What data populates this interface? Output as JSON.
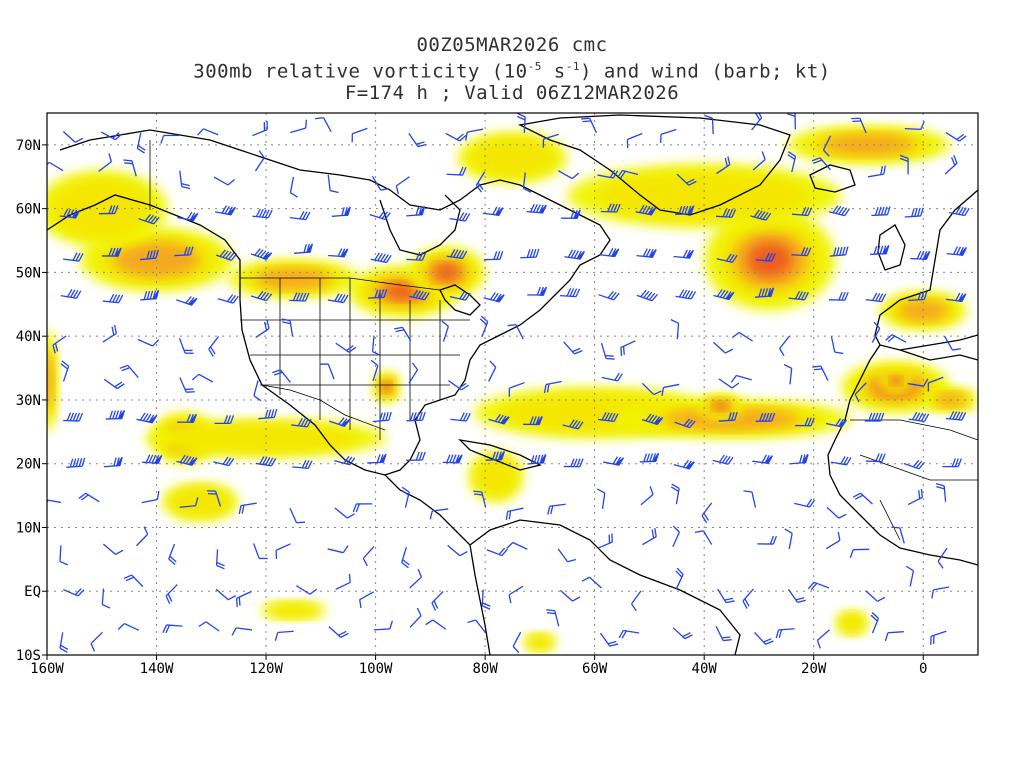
{
  "title": {
    "line1": "00Z05MAR2026 cmc",
    "line2_a": "300mb relative vorticity (10",
    "line2_sup1": "-5",
    "line2_b": " s",
    "line2_sup2": "-1",
    "line2_c": ") and wind (barb; kt)",
    "line3": "F=174 h ; Valid 06Z12MAR2026"
  },
  "map": {
    "lon_range": [
      -160,
      10
    ],
    "lat_range": [
      -10,
      75
    ],
    "lon_ticks": [
      {
        "value": -160,
        "label": "160W"
      },
      {
        "value": -140,
        "label": "140W"
      },
      {
        "value": -120,
        "label": "120W"
      },
      {
        "value": -100,
        "label": "100W"
      },
      {
        "value": -80,
        "label": "80W"
      },
      {
        "value": -60,
        "label": "60W"
      },
      {
        "value": -40,
        "label": "40W"
      },
      {
        "value": -20,
        "label": "20W"
      },
      {
        "value": 0,
        "label": "0"
      }
    ],
    "lat_ticks": [
      {
        "value": 70,
        "label": "70N"
      },
      {
        "value": 60,
        "label": "60N"
      },
      {
        "value": 50,
        "label": "50N"
      },
      {
        "value": 40,
        "label": "40N"
      },
      {
        "value": 30,
        "label": "30N"
      },
      {
        "value": 20,
        "label": "20N"
      },
      {
        "value": 10,
        "label": "10N"
      },
      {
        "value": 0,
        "label": "EQ"
      },
      {
        "value": -10,
        "label": "10S"
      }
    ],
    "grid": true,
    "colors": {
      "shade_light": "#f0f500",
      "shade_yellow": "#f5e600",
      "shade_orange": "#f5a623",
      "shade_deep": "#ee5a1e",
      "shade_red": "#e6194b",
      "barb": "#2244ee",
      "coast": "#000000",
      "grid": "#888888"
    },
    "vorticity_features": [
      {
        "lon": -140,
        "lat": 52,
        "rx": 14,
        "ry": 5,
        "level": 2
      },
      {
        "lon": -150,
        "lat": 60,
        "rx": 12,
        "ry": 6,
        "level": 1
      },
      {
        "lon": -115,
        "lat": 49,
        "rx": 12,
        "ry": 3,
        "level": 2
      },
      {
        "lon": -95,
        "lat": 47,
        "rx": 10,
        "ry": 4,
        "level": 3
      },
      {
        "lon": -87,
        "lat": 50,
        "rx": 7,
        "ry": 4,
        "level": 3
      },
      {
        "lon": -98,
        "lat": 32,
        "rx": 2.5,
        "ry": 2.5,
        "level": 4
      },
      {
        "lon": -135,
        "lat": 24,
        "rx": 6,
        "ry": 4,
        "level": 3
      },
      {
        "lon": -132,
        "lat": 14,
        "rx": 7,
        "ry": 3,
        "level": 1
      },
      {
        "lon": -120,
        "lat": 24,
        "rx": 22,
        "ry": 3,
        "level": 1
      },
      {
        "lon": -60,
        "lat": 28,
        "rx": 22,
        "ry": 4,
        "level": 1
      },
      {
        "lon": -35,
        "lat": 27,
        "rx": 22,
        "ry": 3,
        "level": 2
      },
      {
        "lon": -37,
        "lat": 29,
        "rx": 4,
        "ry": 2,
        "level": 3
      },
      {
        "lon": -5,
        "lat": 32,
        "rx": 10,
        "ry": 4,
        "level": 3
      },
      {
        "lon": -5,
        "lat": 33,
        "rx": 3,
        "ry": 2,
        "level": 4
      },
      {
        "lon": 5,
        "lat": 30,
        "rx": 5,
        "ry": 2,
        "level": 2
      },
      {
        "lon": -28,
        "lat": 52,
        "rx": 12,
        "ry": 8,
        "level": 3
      },
      {
        "lon": -40,
        "lat": 62,
        "rx": 25,
        "ry": 5,
        "level": 1
      },
      {
        "lon": -10,
        "lat": 70,
        "rx": 15,
        "ry": 3,
        "level": 2
      },
      {
        "lon": 0,
        "lat": 44,
        "rx": 8,
        "ry": 3,
        "level": 2
      },
      {
        "lon": -75,
        "lat": 68,
        "rx": 10,
        "ry": 4,
        "level": 1
      },
      {
        "lon": -160,
        "lat": 33,
        "rx": 2,
        "ry": 8,
        "level": 2
      },
      {
        "lon": -78,
        "lat": 18,
        "rx": 5,
        "ry": 4,
        "level": 1
      },
      {
        "lon": -70,
        "lat": -8,
        "rx": 3,
        "ry": 1.5,
        "level": 1
      },
      {
        "lon": -13,
        "lat": -5,
        "rx": 3,
        "ry": 2,
        "level": 1
      },
      {
        "lon": -115,
        "lat": -3,
        "rx": 6,
        "ry": 1.5,
        "level": 1
      }
    ]
  }
}
